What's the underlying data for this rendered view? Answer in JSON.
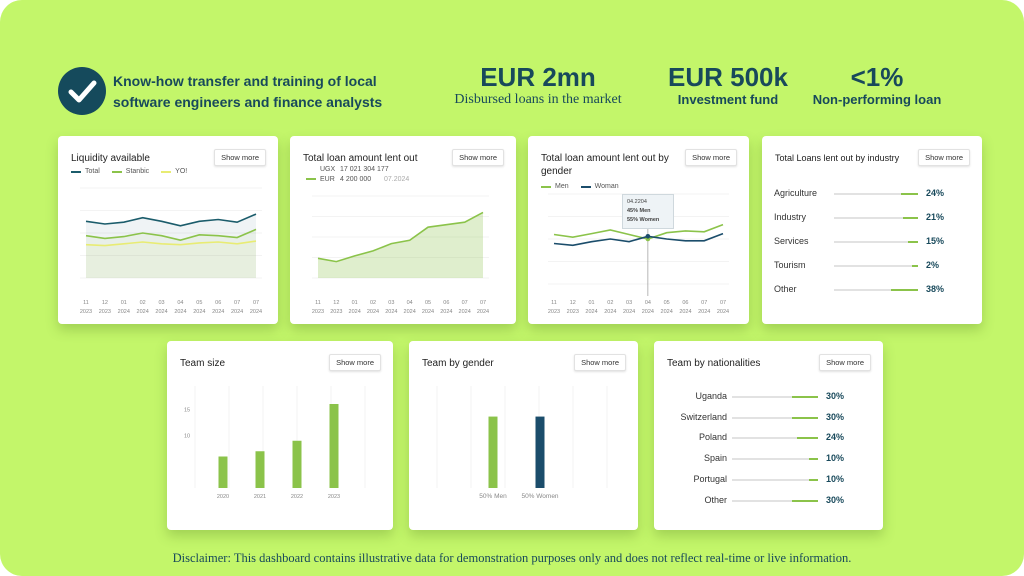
{
  "header": {
    "headline": "Know-how transfer and training of local software engineers and finance analysts",
    "kpis": [
      {
        "value": "EUR 2mn",
        "label": "Disbursed loans in the market"
      },
      {
        "value": "EUR 500k",
        "label": "Investment fund"
      },
      {
        "value": "<1%",
        "label": "Non-performing loan"
      }
    ]
  },
  "show_more": "Show more",
  "date_ticks": {
    "top": [
      "11",
      "12",
      "01",
      "02",
      "03",
      "04",
      "05",
      "06",
      "07",
      "07"
    ],
    "bottom": [
      "2023",
      "2023",
      "2024",
      "2024",
      "2024",
      "2024",
      "2024",
      "2024",
      "2024",
      "2024"
    ]
  },
  "liquidity": {
    "title": "Liquidity available",
    "legend": [
      {
        "name": "Total",
        "color": "#1b5c6b"
      },
      {
        "name": "Stanbic",
        "color": "#8bc34a"
      },
      {
        "name": "YO!",
        "color": "#e8ec73"
      }
    ]
  },
  "loan_total": {
    "title": "Total loan amount lent out",
    "rows": [
      {
        "currency": "UGX",
        "amount": "17 021 304 177",
        "date": ""
      },
      {
        "currency": "EUR",
        "amount": "4 200 000",
        "date": "07.2024"
      }
    ]
  },
  "loan_gender": {
    "title": "Total loan amount lent out by gender",
    "legend": [
      {
        "name": "Men",
        "color": "#8bc34a"
      },
      {
        "name": "Woman",
        "color": "#1b4d6b"
      }
    ],
    "tooltip": {
      "date": "04.2204",
      "men": "45% Men",
      "women": "55% Women"
    }
  },
  "industry": {
    "title": "Total Loans lent out by industry",
    "rows": [
      {
        "label": "Agriculture",
        "pct": "24%",
        "value": 24
      },
      {
        "label": "Industry",
        "pct": "21%",
        "value": 21
      },
      {
        "label": "Services",
        "pct": "15%",
        "value": 15
      },
      {
        "label": "Tourism",
        "pct": "2%",
        "value": 2
      },
      {
        "label": "Other",
        "pct": "38%",
        "value": 38
      }
    ]
  },
  "team_size": {
    "title": "Team size",
    "yticks": [
      "15",
      "10"
    ]
  },
  "team_gender": {
    "title": "Team by gender"
  },
  "nationalities": {
    "title": "Team by nationalities",
    "rows": [
      {
        "label": "Uganda",
        "pct": "30%",
        "value": 30
      },
      {
        "label": "Switzerland",
        "pct": "30%",
        "value": 30
      },
      {
        "label": "Poland",
        "pct": "24%",
        "value": 24
      },
      {
        "label": "Spain",
        "pct": "10%",
        "value": 10
      },
      {
        "label": "Portugal",
        "pct": "10%",
        "value": 10
      },
      {
        "label": "Other",
        "pct": "30%",
        "value": 30
      }
    ]
  },
  "chart_data": [
    {
      "type": "line",
      "title": "Liquidity available",
      "x": [
        "11 2023",
        "12 2023",
        "01 2024",
        "02 2024",
        "03 2024",
        "04 2024",
        "05 2024",
        "06 2024",
        "07 2024",
        "07 2024"
      ],
      "series": [
        {
          "name": "Total",
          "values": [
            63,
            60,
            62,
            67,
            63,
            58,
            63,
            65,
            62,
            71
          ]
        },
        {
          "name": "Stanbic",
          "values": [
            47,
            44,
            46,
            50,
            47,
            42,
            48,
            47,
            45,
            54
          ]
        },
        {
          "name": "YO!",
          "values": [
            37,
            36,
            38,
            40,
            38,
            37,
            39,
            40,
            38,
            41
          ]
        }
      ],
      "ylim": [
        0,
        100
      ]
    },
    {
      "type": "area",
      "title": "Total loan amount lent out",
      "x": [
        "11 2023",
        "12 2023",
        "01 2024",
        "02 2024",
        "03 2024",
        "04 2024",
        "05 2024",
        "06 2024",
        "07 2024",
        "07 2024"
      ],
      "series": [
        {
          "name": "EUR",
          "values": [
            24,
            20,
            27,
            33,
            42,
            46,
            62,
            65,
            68,
            80
          ]
        }
      ],
      "ylim": [
        0,
        100
      ]
    },
    {
      "type": "line",
      "title": "Total loan amount lent out by gender",
      "x": [
        "11 2023",
        "12 2023",
        "01 2024",
        "02 2024",
        "03 2024",
        "04 2024",
        "05 2024",
        "06 2024",
        "07 2024",
        "07 2024"
      ],
      "series": [
        {
          "name": "Men",
          "values": [
            55,
            52,
            56,
            60,
            55,
            50,
            57,
            59,
            58,
            66
          ]
        },
        {
          "name": "Woman",
          "values": [
            45,
            43,
            47,
            50,
            47,
            53,
            50,
            48,
            48,
            56
          ]
        }
      ],
      "ylim": [
        0,
        100
      ]
    },
    {
      "type": "bar",
      "title": "Team size",
      "categories": [
        "2020",
        "2021",
        "2022",
        "2023"
      ],
      "values": [
        6,
        7,
        9,
        16
      ],
      "ylim": [
        0,
        20
      ]
    },
    {
      "type": "bar",
      "title": "Team by gender",
      "categories": [
        "50% Men",
        "50% Women"
      ],
      "values": [
        50,
        50
      ],
      "colors": [
        "#8bc34a",
        "#1b4d6b"
      ],
      "ylim": [
        0,
        70
      ]
    }
  ]
}
